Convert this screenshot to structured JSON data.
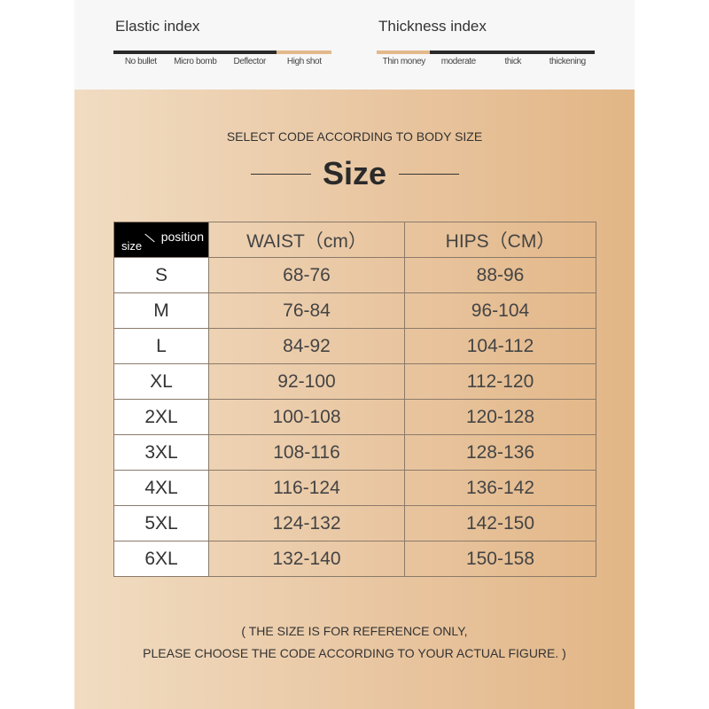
{
  "elastic_index": {
    "title": "Elastic index",
    "levels": [
      "No bullet",
      "Micro bomb",
      "Deflector",
      "High shot"
    ],
    "selected": "High shot"
  },
  "thickness_index": {
    "title": "Thickness index",
    "levels": [
      "Thin money",
      "moderate",
      "thick",
      "thickening"
    ],
    "selected": "Thin money"
  },
  "colors": {
    "highlight": "#e3b98b",
    "bar": "#2a2a2a"
  },
  "subtitle": "SELECT CODE ACCORDING TO BODY SIZE",
  "title": "Size",
  "table": {
    "corner_size": "size",
    "corner_position": "position",
    "headers": [
      "WAIST（cm）",
      "HIPS（CM）"
    ],
    "rows": [
      [
        "S",
        "68-76",
        "88-96"
      ],
      [
        "M",
        "76-84",
        "96-104"
      ],
      [
        "L",
        "84-92",
        "104-112"
      ],
      [
        "XL",
        "92-100",
        "112-120"
      ],
      [
        "2XL",
        "100-108",
        "120-128"
      ],
      [
        "3XL",
        "108-116",
        "128-136"
      ],
      [
        "4XL",
        "116-124",
        "136-142"
      ],
      [
        "5XL",
        "124-132",
        "142-150"
      ],
      [
        "6XL",
        "132-140",
        "150-158"
      ]
    ]
  },
  "note": {
    "line1": "( THE SIZE IS FOR REFERENCE ONLY,",
    "line2": "PLEASE CHOOSE THE CODE ACCORDING TO YOUR ACTUAL FIGURE. )"
  }
}
